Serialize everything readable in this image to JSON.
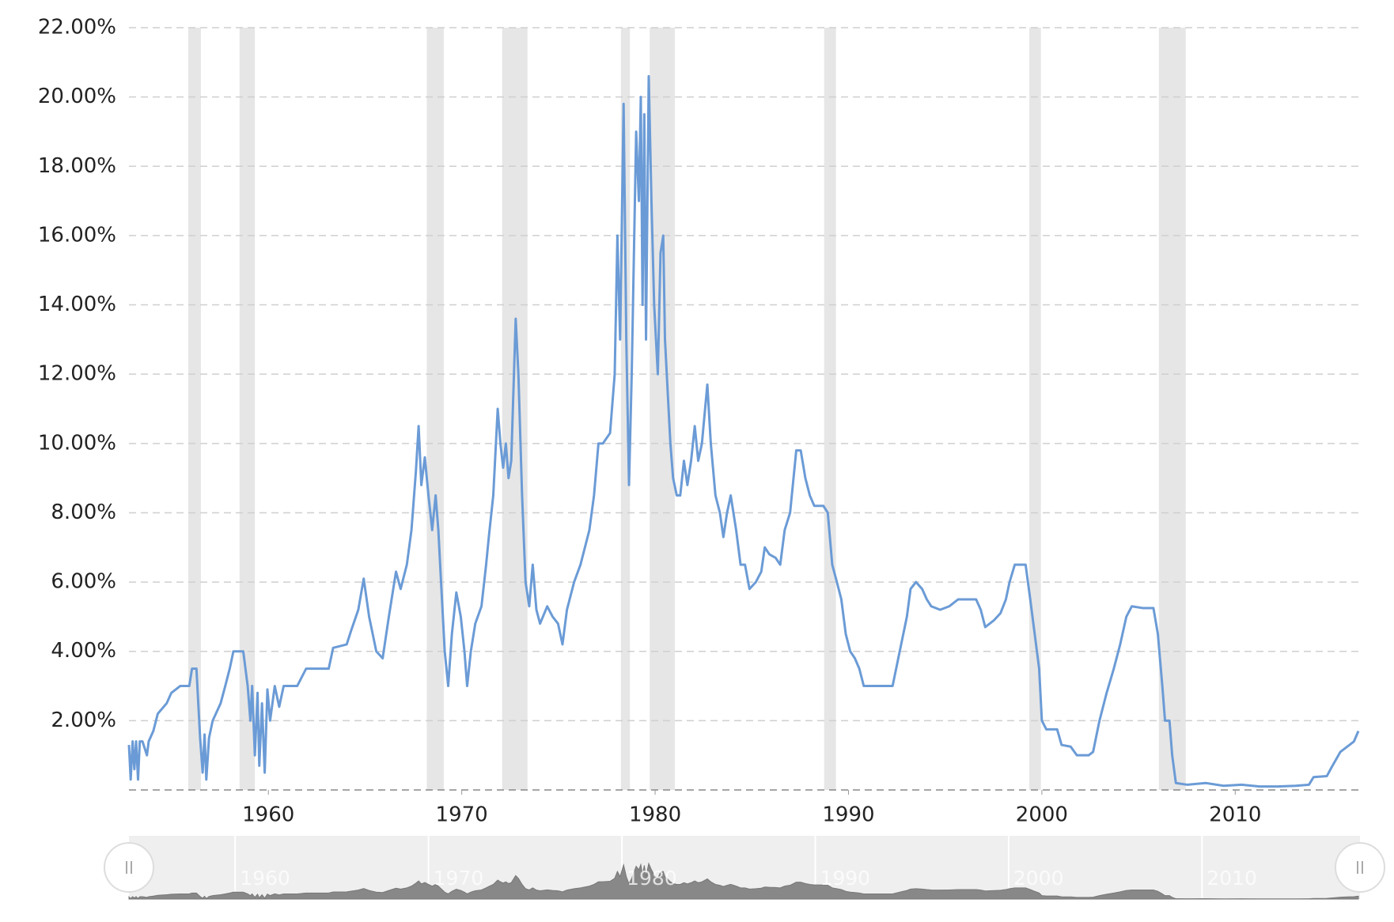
{
  "chart_data": {
    "type": "line",
    "xlim": [
      1952.79,
      2016.37
    ],
    "xticks": [
      1960,
      1970,
      1980,
      1990,
      2000,
      2010
    ],
    "ylim": [
      0,
      22
    ],
    "yticks": [
      {
        "value": 2,
        "label": "2.00%"
      },
      {
        "value": 4,
        "label": "4.00%"
      },
      {
        "value": 6,
        "label": "6.00%"
      },
      {
        "value": 8,
        "label": "8.00%"
      },
      {
        "value": 10,
        "label": "10.00%"
      },
      {
        "value": 12,
        "label": "12.00%"
      },
      {
        "value": 14,
        "label": "14.00%"
      },
      {
        "value": 16,
        "label": "16.00%"
      },
      {
        "value": 18,
        "label": "18.00%"
      },
      {
        "value": 20,
        "label": "20.00%"
      },
      {
        "value": 22,
        "label": "22.00%"
      }
    ],
    "grid": true,
    "color": "#6b9bd6",
    "band_color": "#e6e6e6",
    "recessions": [
      [
        1955.86,
        1956.51
      ],
      [
        1958.51,
        1959.3
      ],
      [
        1968.19,
        1969.07
      ],
      [
        1972.09,
        1973.4
      ],
      [
        1978.23,
        1978.7
      ],
      [
        1979.72,
        1981.02
      ],
      [
        1988.74,
        1989.35
      ],
      [
        1999.35,
        1999.95
      ],
      [
        2006.05,
        2007.44
      ]
    ],
    "x": [
      1952.79,
      1952.88,
      1952.98,
      1953.07,
      1953.16,
      1953.26,
      1953.35,
      1953.49,
      1953.72,
      1953.81,
      1954.05,
      1954.28,
      1954.74,
      1954.98,
      1955.44,
      1955.91,
      1956.05,
      1956.28,
      1956.47,
      1956.6,
      1956.7,
      1956.79,
      1956.93,
      1957.12,
      1957.53,
      1957.77,
      1958.0,
      1958.19,
      1958.7,
      1958.93,
      1959.07,
      1959.16,
      1959.3,
      1959.44,
      1959.53,
      1959.67,
      1959.81,
      1959.95,
      1960.09,
      1960.33,
      1960.56,
      1960.79,
      1961.49,
      1961.95,
      1963.12,
      1963.35,
      1964.05,
      1964.28,
      1964.65,
      1964.93,
      1965.21,
      1965.58,
      1965.91,
      1966.23,
      1966.6,
      1966.84,
      1967.16,
      1967.4,
      1967.63,
      1967.77,
      1967.91,
      1968.09,
      1968.28,
      1968.47,
      1968.65,
      1968.79,
      1968.93,
      1969.12,
      1969.3,
      1969.49,
      1969.72,
      1969.95,
      1970.14,
      1970.28,
      1970.47,
      1970.7,
      1971.02,
      1971.26,
      1971.4,
      1971.63,
      1971.86,
      1972.0,
      1972.14,
      1972.28,
      1972.42,
      1972.56,
      1972.7,
      1972.79,
      1972.93,
      1973.12,
      1973.3,
      1973.49,
      1973.67,
      1973.86,
      1974.05,
      1974.42,
      1974.7,
      1974.98,
      1975.21,
      1975.44,
      1975.81,
      1976.14,
      1976.6,
      1976.84,
      1977.07,
      1977.3,
      1977.67,
      1977.91,
      1978.05,
      1978.19,
      1978.37,
      1978.51,
      1978.65,
      1978.79,
      1979.02,
      1979.16,
      1979.26,
      1979.35,
      1979.44,
      1979.53,
      1979.67,
      1979.81,
      1979.95,
      1980.14,
      1980.28,
      1980.42,
      1980.51,
      1980.65,
      1980.79,
      1980.93,
      1981.12,
      1981.3,
      1981.49,
      1981.67,
      1981.86,
      1982.05,
      1982.23,
      1982.42,
      1982.7,
      1982.88,
      1983.12,
      1983.35,
      1983.53,
      1983.72,
      1983.91,
      1984.19,
      1984.42,
      1984.65,
      1984.88,
      1985.21,
      1985.49,
      1985.67,
      1985.91,
      1986.23,
      1986.47,
      1986.7,
      1986.98,
      1987.3,
      1987.53,
      1987.77,
      1988.0,
      1988.23,
      1988.7,
      1988.93,
      1989.16,
      1989.4,
      1989.63,
      1989.86,
      1990.09,
      1990.33,
      1990.56,
      1990.79,
      1991.16,
      1991.49,
      1991.95,
      1992.28,
      1992.65,
      1993.02,
      1993.21,
      1993.49,
      1993.81,
      1994.05,
      1994.28,
      1994.74,
      1995.21,
      1995.67,
      1996.14,
      1996.6,
      1996.84,
      1997.07,
      1997.53,
      1997.86,
      1998.14,
      1998.33,
      1998.6,
      1998.93,
      1999.16,
      1999.4,
      1999.63,
      1999.86,
      2000.0,
      2000.23,
      2000.79,
      2001.02,
      2001.49,
      2001.81,
      2002.42,
      2002.65,
      2002.98,
      2003.35,
      2003.72,
      2004.05,
      2004.37,
      2004.65,
      2005.21,
      2005.77,
      2006.0,
      2006.23,
      2006.37,
      2006.6,
      2006.74,
      2006.93,
      2007.53,
      2008.47,
      2009.4,
      2010.33,
      2011.26,
      2012.19,
      2013.12,
      2013.81,
      2014.05,
      2014.74,
      2014.98,
      2015.44,
      2015.91,
      2016.14,
      2016.37
    ],
    "values": [
      1.3,
      0.3,
      1.4,
      0.6,
      1.4,
      0.3,
      1.4,
      1.4,
      1.0,
      1.4,
      1.7,
      2.2,
      2.5,
      2.8,
      3.0,
      3.0,
      3.5,
      3.5,
      1.5,
      0.5,
      1.6,
      0.3,
      1.5,
      2.0,
      2.5,
      3.0,
      3.5,
      4.0,
      4.0,
      3.0,
      2.0,
      3.0,
      1.0,
      2.8,
      0.7,
      2.5,
      0.5,
      2.9,
      2.0,
      3.0,
      2.4,
      3.0,
      3.0,
      3.5,
      3.5,
      4.1,
      4.2,
      4.6,
      5.2,
      6.1,
      5.0,
      4.0,
      3.8,
      5.0,
      6.3,
      5.8,
      6.5,
      7.5,
      9.2,
      10.5,
      8.8,
      9.6,
      8.5,
      7.5,
      8.5,
      7.5,
      6.0,
      4.0,
      3.0,
      4.5,
      5.7,
      5.0,
      4.0,
      3.0,
      4.0,
      4.8,
      5.3,
      6.5,
      7.3,
      8.5,
      11.0,
      10.0,
      9.3,
      10.0,
      9.0,
      9.5,
      12.0,
      13.6,
      12.0,
      8.5,
      6.0,
      5.3,
      6.5,
      5.2,
      4.8,
      5.3,
      5.0,
      4.8,
      4.2,
      5.2,
      6.0,
      6.5,
      7.5,
      8.5,
      10.0,
      10.0,
      10.3,
      12.0,
      16.0,
      13.0,
      19.8,
      13.0,
      8.8,
      12.0,
      19.0,
      17.0,
      20.0,
      14.0,
      19.5,
      13.0,
      20.6,
      17.0,
      14.0,
      12.0,
      15.5,
      16.0,
      13.0,
      11.5,
      10.0,
      9.0,
      8.5,
      8.5,
      9.5,
      8.8,
      9.5,
      10.5,
      9.5,
      10.0,
      11.7,
      10.0,
      8.5,
      8.0,
      7.3,
      8.0,
      8.5,
      7.5,
      6.5,
      6.5,
      5.8,
      6.0,
      6.3,
      7.0,
      6.8,
      6.7,
      6.5,
      7.5,
      8.0,
      9.8,
      9.8,
      9.0,
      8.5,
      8.2,
      8.2,
      8.0,
      6.5,
      6.0,
      5.5,
      4.5,
      4.0,
      3.8,
      3.5,
      3.0,
      3.0,
      3.0,
      3.0,
      3.0,
      4.0,
      5.0,
      5.8,
      6.0,
      5.8,
      5.5,
      5.3,
      5.2,
      5.3,
      5.5,
      5.5,
      5.5,
      5.2,
      4.7,
      4.9,
      5.1,
      5.5,
      6.0,
      6.5,
      6.5,
      6.5,
      5.5,
      4.5,
      3.5,
      2.0,
      1.75,
      1.75,
      1.3,
      1.25,
      1.0,
      1.0,
      1.1,
      2.0,
      2.8,
      3.5,
      4.2,
      5.0,
      5.3,
      5.25,
      5.25,
      4.5,
      3.0,
      2.0,
      2.0,
      1.0,
      0.2,
      0.15,
      0.2,
      0.12,
      0.15,
      0.1,
      0.1,
      0.12,
      0.15,
      0.37,
      0.4,
      0.65,
      1.1,
      1.3,
      1.4,
      1.7
    ]
  }
}
